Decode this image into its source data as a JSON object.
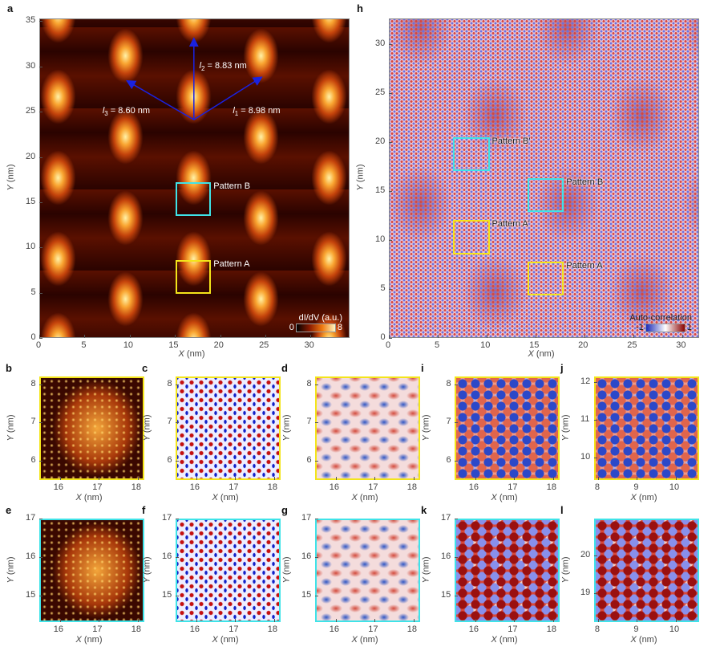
{
  "axis": {
    "x_var": "X",
    "y_var": "Y",
    "unit": "(nm)"
  },
  "panels": [
    {
      "id": "a",
      "label": "a",
      "xlim": [
        0,
        34.3
      ],
      "ylim": [
        0,
        35.3
      ],
      "xticks": [
        0,
        5,
        10,
        15,
        20,
        25,
        30
      ],
      "yticks": [
        0,
        5,
        10,
        15,
        20,
        25,
        30,
        35
      ],
      "boxes": [
        {
          "name": "Pattern B",
          "color": "#3fe3e8",
          "x": [
            15,
            18.9
          ],
          "y": [
            13.6,
            17.3
          ]
        },
        {
          "name": "Pattern A",
          "color": "#f3e51a",
          "x": [
            15,
            18.9
          ],
          "y": [
            5,
            8.7
          ]
        }
      ],
      "arrows": {
        "origin": [
          17,
          24.2
        ],
        "ends": [
          [
            24.5,
            28.9
          ],
          [
            17,
            33.2
          ],
          [
            9.6,
            28.5
          ]
        ],
        "color": "#1a22e0"
      },
      "annotations": [
        {
          "sym": "l",
          "sub": "1",
          "value": " = 8.98 nm",
          "at": [
            21.3,
            25
          ]
        },
        {
          "sym": "l",
          "sub": "2",
          "value": " = 8.83 nm",
          "at": [
            17.6,
            30
          ]
        },
        {
          "sym": "l",
          "sub": "3",
          "value": " = 8.60 nm",
          "at": [
            6.9,
            25
          ]
        }
      ],
      "colorbar": {
        "title": "dI/dV (a.u.)",
        "min": "0",
        "max": "8",
        "gradient": [
          "#000000",
          "#8a1a00",
          "#f07a10",
          "#fff6c0"
        ]
      }
    },
    {
      "id": "h",
      "label": "h",
      "xlim": [
        0,
        31.7
      ],
      "ylim": [
        0,
        32.6
      ],
      "xticks": [
        0,
        5,
        10,
        15,
        20,
        25,
        30
      ],
      "yticks": [
        0,
        5,
        10,
        15,
        20,
        25,
        30
      ],
      "boxes": [
        {
          "name": "Pattern B'",
          "color": "#3fe3e8",
          "x": [
            6.5,
            10.2
          ],
          "y": [
            17.1,
            20.6
          ]
        },
        {
          "name": "Pattern B",
          "color": "#3fe3e8",
          "x": [
            14.1,
            17.8
          ],
          "y": [
            12.9,
            16.4
          ]
        },
        {
          "name": "Pattern A'",
          "color": "#f3e51a",
          "x": [
            6.5,
            10.2
          ],
          "y": [
            8.6,
            12.1
          ]
        },
        {
          "name": "Pattern A",
          "color": "#f3e51a",
          "x": [
            14.1,
            17.8
          ],
          "y": [
            4.4,
            7.9
          ]
        }
      ],
      "colorbar": {
        "title": "Auto-correlation",
        "min": "-1",
        "max": "1",
        "gradient": [
          "#1a2ab8",
          "#ffffff",
          "#8a0000"
        ]
      }
    },
    {
      "id": "b",
      "label": "b",
      "xlim": [
        15.47,
        18.17
      ],
      "ylim": [
        5.5,
        8.2
      ],
      "xticks": [
        16,
        17,
        18
      ],
      "yticks": [
        6,
        7,
        8
      ]
    },
    {
      "id": "c",
      "label": "c",
      "xlim": [
        15.47,
        18.17
      ],
      "ylim": [
        5.5,
        8.2
      ],
      "xticks": [
        16,
        17,
        18
      ],
      "yticks": [
        6,
        7,
        8
      ]
    },
    {
      "id": "d",
      "label": "d",
      "xlim": [
        15.47,
        18.17
      ],
      "ylim": [
        5.5,
        8.2
      ],
      "xticks": [
        16,
        17,
        18
      ],
      "yticks": [
        6,
        7,
        8
      ]
    },
    {
      "id": "i",
      "label": "i",
      "xlim": [
        15.47,
        18.17
      ],
      "ylim": [
        5.5,
        8.2
      ],
      "xticks": [
        16,
        17,
        18
      ],
      "yticks": [
        6,
        7,
        8
      ]
    },
    {
      "id": "j",
      "label": "j",
      "xlim": [
        7.9,
        10.6
      ],
      "ylim": [
        9.4,
        12.15
      ],
      "xticks": [
        8,
        9,
        10
      ],
      "yticks": [
        10,
        11,
        12
      ]
    },
    {
      "id": "e",
      "label": "e",
      "xlim": [
        15.47,
        18.17
      ],
      "ylim": [
        14.3,
        17
      ],
      "xticks": [
        16,
        17,
        18
      ],
      "yticks": [
        15,
        16,
        17
      ]
    },
    {
      "id": "f",
      "label": "f",
      "xlim": [
        15.47,
        18.17
      ],
      "ylim": [
        14.3,
        17
      ],
      "xticks": [
        16,
        17,
        18
      ],
      "yticks": [
        15,
        16,
        17
      ]
    },
    {
      "id": "g",
      "label": "g",
      "xlim": [
        15.47,
        18.17
      ],
      "ylim": [
        14.3,
        17
      ],
      "xticks": [
        16,
        17,
        18
      ],
      "yticks": [
        15,
        16,
        17
      ]
    },
    {
      "id": "k",
      "label": "k",
      "xlim": [
        15.47,
        18.17
      ],
      "ylim": [
        14.3,
        17
      ],
      "xticks": [
        16,
        17,
        18
      ],
      "yticks": [
        15,
        16,
        17
      ]
    },
    {
      "id": "l",
      "label": "l",
      "xlim": [
        7.9,
        10.6
      ],
      "ylim": [
        18.25,
        20.97
      ],
      "xticks": [
        8,
        9,
        10
      ],
      "yticks": [
        19,
        20
      ]
    }
  ]
}
